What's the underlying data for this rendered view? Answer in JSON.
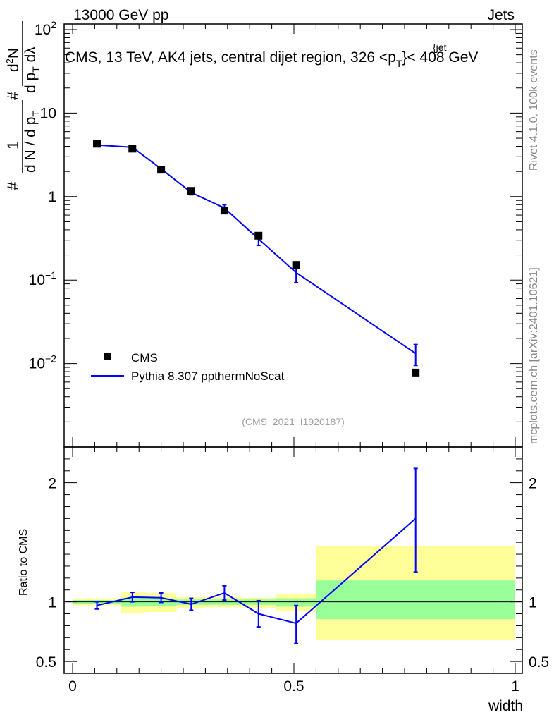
{
  "header": {
    "left": "13000 GeV pp",
    "right": "Jets"
  },
  "side": {
    "rivet": "Rivet 4.1.0,  100k events",
    "mcplots": "mcplots.cern.ch [arXiv:2401.10621]"
  },
  "colors": {
    "mc": "#0000ff",
    "data": "#000000",
    "band_inner": "#99ff99",
    "band_outer": "#ffff99"
  },
  "chart_data": {
    "type": "scatter",
    "title": "CMS, 13 TeV, AK4 jets, central dijet region, 326 <p",
    "title_sub": "T",
    "title_sup": "{jet",
    "title_tail": "}< 408 GeV",
    "watermark": "(CMS_2021_I1920187)",
    "xlabel": "width",
    "ylabel_top": {
      "factor_num": "1",
      "factor_den_a": "d N / d p",
      "factor_den_sub": "T",
      "hash": "#",
      "right_num": "d",
      "right_num_sup": "2",
      "right_num_b": "N",
      "right_den_a": "d p",
      "right_den_sub": "T",
      "right_den_b": " d",
      "lambda": "λ"
    },
    "ylabel_bottom": "Ratio to CMS",
    "xlim": [
      0,
      1
    ],
    "ylim_top": [
      0.001,
      100
    ],
    "ylim_bottom": [
      0.4,
      2.3
    ],
    "x_ticks": [
      {
        "value": 0,
        "label": "0"
      },
      {
        "value": 0.5,
        "label": "0.5"
      },
      {
        "value": 1,
        "label": "1"
      }
    ],
    "y_ticks_top": [
      {
        "value": 100,
        "base": "10",
        "exp": "2"
      },
      {
        "value": 10,
        "base": "10",
        "exp": ""
      },
      {
        "value": 1,
        "base": "1",
        "exp": ""
      },
      {
        "value": 0.1,
        "base": "10",
        "exp": "−1"
      },
      {
        "value": 0.01,
        "base": "10",
        "exp": "−2"
      }
    ],
    "y_ticks_bottom": [
      {
        "value": 2,
        "label": "2"
      },
      {
        "value": 1,
        "label": "1"
      },
      {
        "value": 0.5,
        "label": "0.5"
      }
    ],
    "legend": [
      {
        "name": "CMS",
        "kind": "marker"
      },
      {
        "name": "Pythia 8.307 ppthermNoScat",
        "kind": "line"
      }
    ],
    "series": [
      {
        "name": "CMS",
        "x": [
          0.055,
          0.135,
          0.2,
          0.268,
          0.343,
          0.42,
          0.505,
          0.775
        ],
        "values": [
          4.3,
          3.75,
          2.1,
          1.17,
          0.68,
          0.34,
          0.152,
          0.0078
        ]
      },
      {
        "name": "Pythia 8.307 ppthermNoScat",
        "x": [
          0.055,
          0.135,
          0.2,
          0.268,
          0.343,
          0.42,
          0.505,
          0.775
        ],
        "values": [
          4.15,
          3.9,
          2.15,
          1.12,
          0.73,
          0.31,
          0.123,
          0.0132
        ],
        "err_low": [
          0.12,
          0.15,
          0.1,
          0.07,
          0.07,
          0.05,
          0.03,
          0.0037
        ],
        "err_high": [
          0.12,
          0.15,
          0.1,
          0.07,
          0.07,
          0.05,
          0.03,
          0.0037
        ]
      }
    ],
    "ratio": {
      "x": [
        0.055,
        0.135,
        0.2,
        0.268,
        0.343,
        0.42,
        0.505,
        0.775
      ],
      "values": [
        0.97,
        1.04,
        1.035,
        0.98,
        1.075,
        0.9,
        0.82,
        1.7
      ],
      "err_low": [
        0.03,
        0.04,
        0.04,
        0.05,
        0.06,
        0.11,
        0.17,
        0.45
      ],
      "err_high": [
        0.03,
        0.04,
        0.04,
        0.05,
        0.06,
        0.11,
        0.15,
        0.42
      ]
    },
    "bands": [
      {
        "x0": 0.0,
        "x1": 0.11,
        "inner": [
          0.985,
          1.015
        ],
        "outer": [
          0.97,
          1.03
        ]
      },
      {
        "x0": 0.11,
        "x1": 0.165,
        "inner": [
          0.96,
          1.035
        ],
        "outer": [
          0.905,
          1.08
        ]
      },
      {
        "x0": 0.165,
        "x1": 0.235,
        "inner": [
          0.965,
          1.03
        ],
        "outer": [
          0.915,
          1.075
        ]
      },
      {
        "x0": 0.235,
        "x1": 0.3,
        "inner": [
          0.975,
          1.02
        ],
        "outer": [
          0.95,
          1.04
        ]
      },
      {
        "x0": 0.3,
        "x1": 0.385,
        "inner": [
          0.975,
          1.02
        ],
        "outer": [
          0.955,
          1.04
        ]
      },
      {
        "x0": 0.385,
        "x1": 0.46,
        "inner": [
          0.975,
          1.02
        ],
        "outer": [
          0.95,
          1.035
        ]
      },
      {
        "x0": 0.46,
        "x1": 0.55,
        "inner": [
          0.96,
          1.03
        ],
        "outer": [
          0.92,
          1.065
        ]
      },
      {
        "x0": 0.55,
        "x1": 1.0,
        "inner": [
          0.855,
          1.18
        ],
        "outer": [
          0.68,
          1.47
        ]
      }
    ]
  }
}
